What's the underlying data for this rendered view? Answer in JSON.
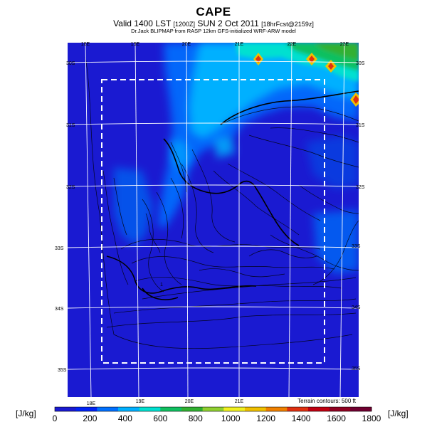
{
  "title": "CAPE",
  "subtitle": {
    "main": "Valid 1400 LST",
    "code": "[1200Z]",
    "date": "SUN 2 Oct 2011",
    "tail": "[18hrFcst@2159z]"
  },
  "subsubtitle": "Dr.Jack BLIPMAP from RASP 12km GFS-initialized WRF-ARW model",
  "terrain_note": "Terrain contours: 500 ft",
  "lon_labels": [
    "18E",
    "19E",
    "20E",
    "21E",
    "22E",
    "23E"
  ],
  "lat_labels": [
    "30S",
    "31S",
    "32S",
    "33S",
    "34S",
    "35S"
  ],
  "marker": "1",
  "colorbar": {
    "unit_left": "[J/kg]",
    "unit_right": "[J/kg]",
    "tick_labels": [
      "0",
      "200",
      "400",
      "600",
      "800",
      "1000",
      "1200",
      "1400",
      "1600",
      "1800"
    ],
    "colors": [
      "#1a1ad1",
      "#0022f5",
      "#0070ff",
      "#00b0ff",
      "#00e0d0",
      "#10c060",
      "#30b030",
      "#90d030",
      "#f0f020",
      "#f0c000",
      "#f08000",
      "#e03010",
      "#c00010",
      "#900020",
      "#700030"
    ]
  }
}
